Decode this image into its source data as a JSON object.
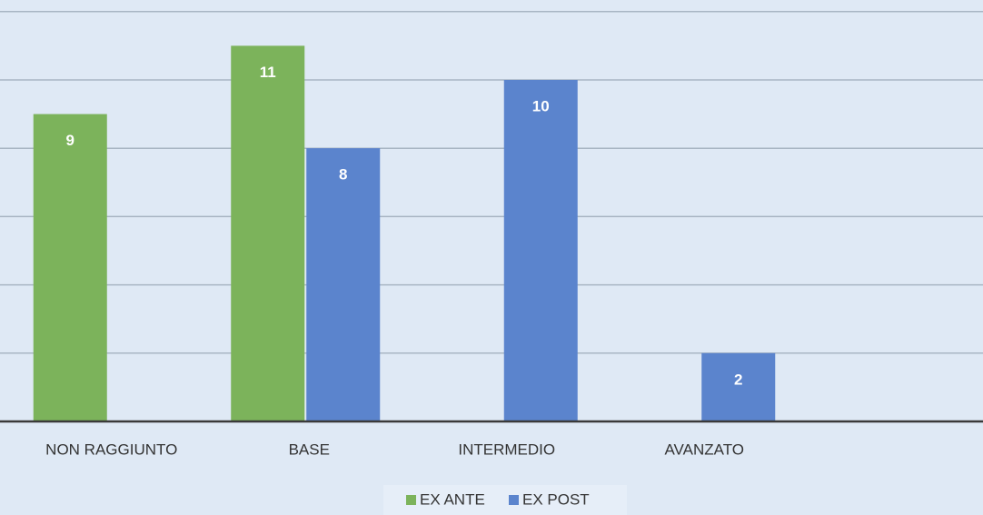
{
  "chart_data": {
    "type": "bar",
    "categories": [
      "NON RAGGIUNTO",
      "BASE",
      "INTERMEDIO",
      "AVANZATO",
      null
    ],
    "series": [
      {
        "name": "EX ANTE",
        "color": "#7cb35b",
        "values": [
          9,
          11,
          null,
          null,
          null
        ]
      },
      {
        "name": "EX POST",
        "color": "#5b84cd",
        "values": [
          null,
          8,
          10,
          2,
          null
        ]
      }
    ],
    "ylim": [
      0,
      12.34
    ],
    "yticks": [
      0,
      2,
      4,
      6,
      8,
      10,
      12
    ],
    "grid": true,
    "legend": "bottom"
  }
}
